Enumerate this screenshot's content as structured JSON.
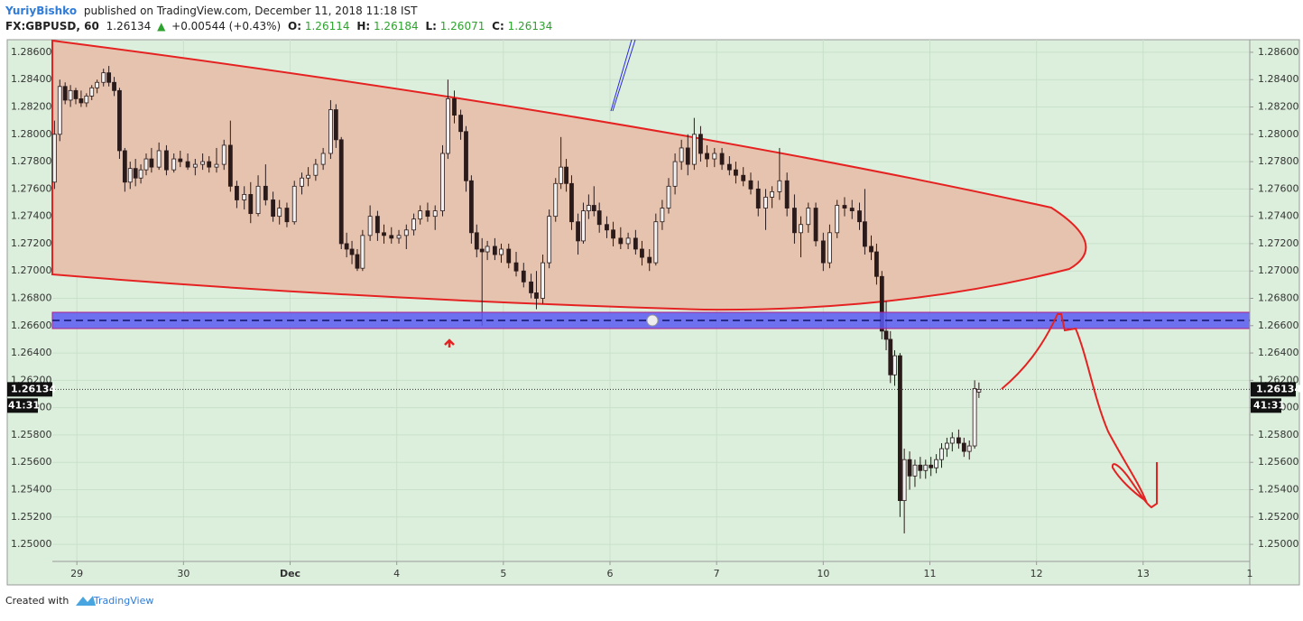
{
  "header": {
    "author": "YuriyBishko",
    "published": "published on TradingView.com, December 11, 2018 11:18 IST",
    "symbol": "FX:GBPUSD, 60",
    "last": "1.26134",
    "arrow": "▲",
    "change": "+0.00544 (+0.43%)",
    "o_label": "O:",
    "o": "1.26114",
    "h_label": "H:",
    "h": "1.26184",
    "l_label": "L:",
    "l": "1.26071",
    "c_label": "C:",
    "c": "1.26134"
  },
  "chart_data": {
    "type": "candlestick",
    "x": [
      -0.21,
      -0.16,
      -0.11,
      -0.06,
      -0.01,
      0.04,
      0.09,
      0.14,
      0.19,
      0.25,
      0.3,
      0.35,
      0.4,
      0.45,
      0.5,
      0.55,
      0.6,
      0.65,
      0.7,
      0.77,
      0.84,
      0.91,
      0.97,
      1.04,
      1.11,
      1.18,
      1.24,
      1.31,
      1.38,
      1.44,
      1.5,
      1.57,
      1.63,
      1.7,
      1.77,
      1.84,
      1.9,
      1.97,
      2.04,
      2.11,
      2.17,
      2.24,
      2.31,
      2.38,
      2.43,
      2.48,
      2.53,
      2.58,
      2.63,
      2.68,
      2.75,
      2.82,
      2.88,
      2.95,
      3.02,
      3.09,
      3.16,
      3.22,
      3.29,
      3.36,
      3.43,
      3.48,
      3.54,
      3.6,
      3.65,
      3.7,
      3.75,
      3.8,
      3.85,
      3.92,
      3.98,
      4.05,
      4.12,
      4.19,
      4.26,
      4.31,
      4.37,
      4.43,
      4.49,
      4.54,
      4.59,
      4.64,
      4.7,
      4.75,
      4.8,
      4.85,
      4.9,
      4.97,
      5.03,
      5.1,
      5.17,
      5.24,
      5.3,
      5.37,
      5.43,
      5.49,
      5.55,
      5.61,
      5.67,
      5.73,
      5.79,
      5.85,
      5.91,
      5.98,
      6.05,
      6.12,
      6.18,
      6.25,
      6.32,
      6.39,
      6.46,
      6.52,
      6.59,
      6.66,
      6.73,
      6.79,
      6.86,
      6.93,
      7.0,
      7.06,
      7.13,
      7.2,
      7.27,
      7.34,
      7.39,
      7.45,
      7.5,
      7.55,
      7.59,
      7.63,
      7.67,
      7.72,
      7.76,
      7.81,
      7.86,
      7.91,
      7.96,
      8.01,
      8.06,
      8.11,
      8.16,
      8.21,
      8.27,
      8.32,
      8.37,
      8.42,
      8.46
    ],
    "open": [
      1.2765,
      1.28,
      1.2835,
      1.2825,
      1.2832,
      1.2826,
      1.2823,
      1.2828,
      1.2834,
      1.2838,
      1.2845,
      1.2838,
      1.2832,
      1.2788,
      1.2765,
      1.2775,
      1.2768,
      1.2774,
      1.2782,
      1.2776,
      1.2788,
      1.2774,
      1.2782,
      1.278,
      1.2776,
      1.2778,
      1.278,
      1.2776,
      1.2778,
      1.2792,
      1.2762,
      1.2752,
      1.2756,
      1.2742,
      1.2762,
      1.2752,
      1.274,
      1.2746,
      1.2736,
      1.2762,
      1.2768,
      1.277,
      1.2778,
      1.2786,
      1.2818,
      1.2796,
      1.272,
      1.2716,
      1.2712,
      1.2702,
      1.2726,
      1.274,
      1.2728,
      1.2726,
      1.2724,
      1.2726,
      1.273,
      1.2738,
      1.2744,
      1.274,
      1.2744,
      1.2786,
      1.2826,
      1.2814,
      1.2802,
      1.2766,
      1.2728,
      1.2716,
      1.2714,
      1.2718,
      1.2712,
      1.2716,
      1.2706,
      1.27,
      1.2692,
      1.2684,
      1.268,
      1.2706,
      1.274,
      1.2764,
      1.2776,
      1.2764,
      1.2736,
      1.2722,
      1.2744,
      1.2748,
      1.2744,
      1.2734,
      1.273,
      1.2724,
      1.272,
      1.2724,
      1.2716,
      1.271,
      1.2706,
      1.2736,
      1.2746,
      1.2762,
      1.278,
      1.279,
      1.2778,
      1.28,
      1.2786,
      1.2782,
      1.2786,
      1.2778,
      1.2774,
      1.277,
      1.2766,
      1.276,
      1.2746,
      1.2754,
      1.2758,
      1.2766,
      1.2746,
      1.2728,
      1.2734,
      1.2746,
      1.2722,
      1.2706,
      1.2728,
      1.2748,
      1.2746,
      1.2744,
      1.2736,
      1.2718,
      1.2714,
      1.2696,
      1.2656,
      1.265,
      1.2624,
      1.2638,
      1.2532,
      1.2562,
      1.255,
      1.2558,
      1.2554,
      1.2558,
      1.2556,
      1.2562,
      1.257,
      1.2574,
      1.2578,
      1.2574,
      1.2568,
      1.2572,
      1.26114
    ],
    "high": [
      1.281,
      1.284,
      1.2838,
      1.2836,
      1.2834,
      1.2832,
      1.283,
      1.2836,
      1.284,
      1.2848,
      1.285,
      1.2842,
      1.2834,
      1.279,
      1.278,
      1.2782,
      1.2778,
      1.2786,
      1.279,
      1.2794,
      1.2792,
      1.2786,
      1.2788,
      1.2786,
      1.2782,
      1.2786,
      1.2784,
      1.279,
      1.2796,
      1.281,
      1.2766,
      1.2762,
      1.2765,
      1.277,
      1.2778,
      1.2758,
      1.2752,
      1.275,
      1.2766,
      1.2772,
      1.2776,
      1.2782,
      1.279,
      1.2825,
      1.2822,
      1.2798,
      1.2728,
      1.2722,
      1.2716,
      1.273,
      1.2748,
      1.2744,
      1.2734,
      1.2732,
      1.273,
      1.2734,
      1.2742,
      1.2748,
      1.275,
      1.2748,
      1.2792,
      1.284,
      1.2832,
      1.2818,
      1.2806,
      1.277,
      1.2734,
      1.2724,
      1.2722,
      1.2724,
      1.272,
      1.272,
      1.2714,
      1.2706,
      1.2698,
      1.27,
      1.2712,
      1.2745,
      1.2768,
      1.2798,
      1.2782,
      1.277,
      1.2742,
      1.275,
      1.2756,
      1.2762,
      1.275,
      1.274,
      1.2736,
      1.2732,
      1.2728,
      1.273,
      1.2722,
      1.2716,
      1.2742,
      1.2752,
      1.2768,
      1.2786,
      1.2796,
      1.28,
      1.2812,
      1.2806,
      1.2792,
      1.279,
      1.279,
      1.2784,
      1.278,
      1.2776,
      1.2772,
      1.2766,
      1.276,
      1.2762,
      1.279,
      1.2772,
      1.2756,
      1.274,
      1.275,
      1.275,
      1.2728,
      1.2734,
      1.2752,
      1.2754,
      1.2752,
      1.275,
      1.276,
      1.2726,
      1.272,
      1.27,
      1.2678,
      1.2656,
      1.2642,
      1.264,
      1.257,
      1.2568,
      1.2562,
      1.2564,
      1.2562,
      1.2564,
      1.2566,
      1.2574,
      1.2578,
      1.2582,
      1.2584,
      1.2578,
      1.2576,
      1.262,
      1.26184
    ],
    "low": [
      1.276,
      1.2795,
      1.2822,
      1.282,
      1.2822,
      1.282,
      1.282,
      1.2825,
      1.283,
      1.2835,
      1.2835,
      1.2828,
      1.2782,
      1.2758,
      1.276,
      1.2762,
      1.2764,
      1.277,
      1.2772,
      1.2774,
      1.277,
      1.2772,
      1.2776,
      1.2774,
      1.277,
      1.2774,
      1.2772,
      1.2772,
      1.2774,
      1.2758,
      1.2746,
      1.2745,
      1.2735,
      1.274,
      1.2748,
      1.2736,
      1.2734,
      1.2732,
      1.2734,
      1.2756,
      1.2762,
      1.2766,
      1.2774,
      1.2782,
      1.279,
      1.2716,
      1.271,
      1.2705,
      1.27,
      1.27,
      1.2722,
      1.2722,
      1.272,
      1.272,
      1.272,
      1.2716,
      1.2726,
      1.2734,
      1.2736,
      1.273,
      1.274,
      1.2782,
      1.2808,
      1.2796,
      1.2758,
      1.272,
      1.271,
      1.266,
      1.2708,
      1.2708,
      1.2706,
      1.2702,
      1.2696,
      1.2688,
      1.268,
      1.2672,
      1.2676,
      1.2702,
      1.2736,
      1.276,
      1.2758,
      1.273,
      1.2712,
      1.272,
      1.2738,
      1.274,
      1.2728,
      1.2724,
      1.2718,
      1.2716,
      1.2716,
      1.2712,
      1.2704,
      1.27,
      1.2704,
      1.273,
      1.2742,
      1.2756,
      1.2774,
      1.277,
      1.2774,
      1.278,
      1.2776,
      1.2776,
      1.2774,
      1.277,
      1.2764,
      1.2762,
      1.2756,
      1.274,
      1.273,
      1.2746,
      1.2752,
      1.274,
      1.272,
      1.271,
      1.2728,
      1.2718,
      1.27,
      1.2702,
      1.2724,
      1.274,
      1.2738,
      1.273,
      1.2712,
      1.2708,
      1.269,
      1.265,
      1.2642,
      1.2618,
      1.2616,
      1.252,
      1.2508,
      1.254,
      1.2542,
      1.2548,
      1.2548,
      1.255,
      1.2552,
      1.2556,
      1.2564,
      1.2568,
      1.257,
      1.2564,
      1.2562,
      1.257,
      1.26071
    ],
    "close": [
      1.28,
      1.2835,
      1.2825,
      1.2832,
      1.2826,
      1.2823,
      1.2828,
      1.2834,
      1.2838,
      1.2845,
      1.2838,
      1.2832,
      1.2788,
      1.2765,
      1.2775,
      1.2768,
      1.2774,
      1.2782,
      1.2776,
      1.2788,
      1.2774,
      1.2782,
      1.278,
      1.2776,
      1.2778,
      1.278,
      1.2776,
      1.2778,
      1.2792,
      1.2762,
      1.2752,
      1.2756,
      1.2742,
      1.2762,
      1.2752,
      1.274,
      1.2746,
      1.2736,
      1.2762,
      1.2768,
      1.277,
      1.2778,
      1.2786,
      1.2818,
      1.2796,
      1.272,
      1.2716,
      1.2712,
      1.2702,
      1.2726,
      1.274,
      1.2728,
      1.2726,
      1.2724,
      1.2726,
      1.273,
      1.2738,
      1.2744,
      1.274,
      1.2744,
      1.2786,
      1.2826,
      1.2814,
      1.2802,
      1.2766,
      1.2728,
      1.2716,
      1.2714,
      1.2718,
      1.2712,
      1.2716,
      1.2706,
      1.27,
      1.2692,
      1.2684,
      1.268,
      1.2706,
      1.274,
      1.2764,
      1.2776,
      1.2764,
      1.2736,
      1.2722,
      1.2744,
      1.2748,
      1.2744,
      1.2734,
      1.273,
      1.2724,
      1.272,
      1.2724,
      1.2716,
      1.271,
      1.2706,
      1.2736,
      1.2746,
      1.2762,
      1.278,
      1.279,
      1.2778,
      1.28,
      1.2786,
      1.2782,
      1.2786,
      1.2778,
      1.2774,
      1.277,
      1.2766,
      1.276,
      1.2746,
      1.2754,
      1.2758,
      1.2766,
      1.2746,
      1.2728,
      1.2734,
      1.2746,
      1.2722,
      1.2706,
      1.2728,
      1.2748,
      1.2746,
      1.2744,
      1.2736,
      1.2718,
      1.2714,
      1.2696,
      1.2656,
      1.265,
      1.2624,
      1.2638,
      1.2532,
      1.2562,
      1.255,
      1.2558,
      1.2554,
      1.2558,
      1.2556,
      1.2562,
      1.257,
      1.2574,
      1.2578,
      1.2574,
      1.2568,
      1.2572,
      1.2614,
      1.26134
    ],
    "xlim": [
      -0.23,
      11.0
    ],
    "xticks": [
      {
        "value": 0,
        "label": "29"
      },
      {
        "value": 1,
        "label": "30"
      },
      {
        "value": 2,
        "label": "Dec"
      },
      {
        "value": 3,
        "label": "4"
      },
      {
        "value": 4,
        "label": "5"
      },
      {
        "value": 5,
        "label": "6"
      },
      {
        "value": 6,
        "label": "7"
      },
      {
        "value": 7,
        "label": "10"
      },
      {
        "value": 8,
        "label": "11"
      },
      {
        "value": 9,
        "label": "12"
      },
      {
        "value": 10,
        "label": "13"
      },
      {
        "value": 11,
        "label": "1"
      }
    ],
    "ylim": [
      1.24875,
      1.28692
    ],
    "yticks": [
      {
        "value": 1.25,
        "label": "1.25000"
      },
      {
        "value": 1.252,
        "label": "1.25200"
      },
      {
        "value": 1.254,
        "label": "1.25400"
      },
      {
        "value": 1.256,
        "label": "1.25600"
      },
      {
        "value": 1.258,
        "label": "1.25800"
      },
      {
        "value": 1.26,
        "label": "1.26000"
      },
      {
        "value": 1.262,
        "label": "1.26200"
      },
      {
        "value": 1.264,
        "label": "1.26400"
      },
      {
        "value": 1.266,
        "label": "1.26600"
      },
      {
        "value": 1.268,
        "label": "1.26800"
      },
      {
        "value": 1.27,
        "label": "1.27000"
      },
      {
        "value": 1.272,
        "label": "1.27200"
      },
      {
        "value": 1.274,
        "label": "1.27400"
      },
      {
        "value": 1.276,
        "label": "1.27600"
      },
      {
        "value": 1.278,
        "label": "1.27800"
      },
      {
        "value": 1.28,
        "label": "1.28000"
      },
      {
        "value": 1.282,
        "label": "1.28200"
      },
      {
        "value": 1.284,
        "label": "1.28400"
      },
      {
        "value": 1.286,
        "label": "1.28600"
      }
    ],
    "last_price": {
      "value": 1.26134,
      "label": "1.26134"
    },
    "countdown": "41:31",
    "grid": true,
    "up_color": "#f2f2f2",
    "down_color": "#2b1a1a",
    "wick_color": "#2b1a1a"
  },
  "footer": {
    "created": "Created with",
    "brand": "TradingView"
  }
}
